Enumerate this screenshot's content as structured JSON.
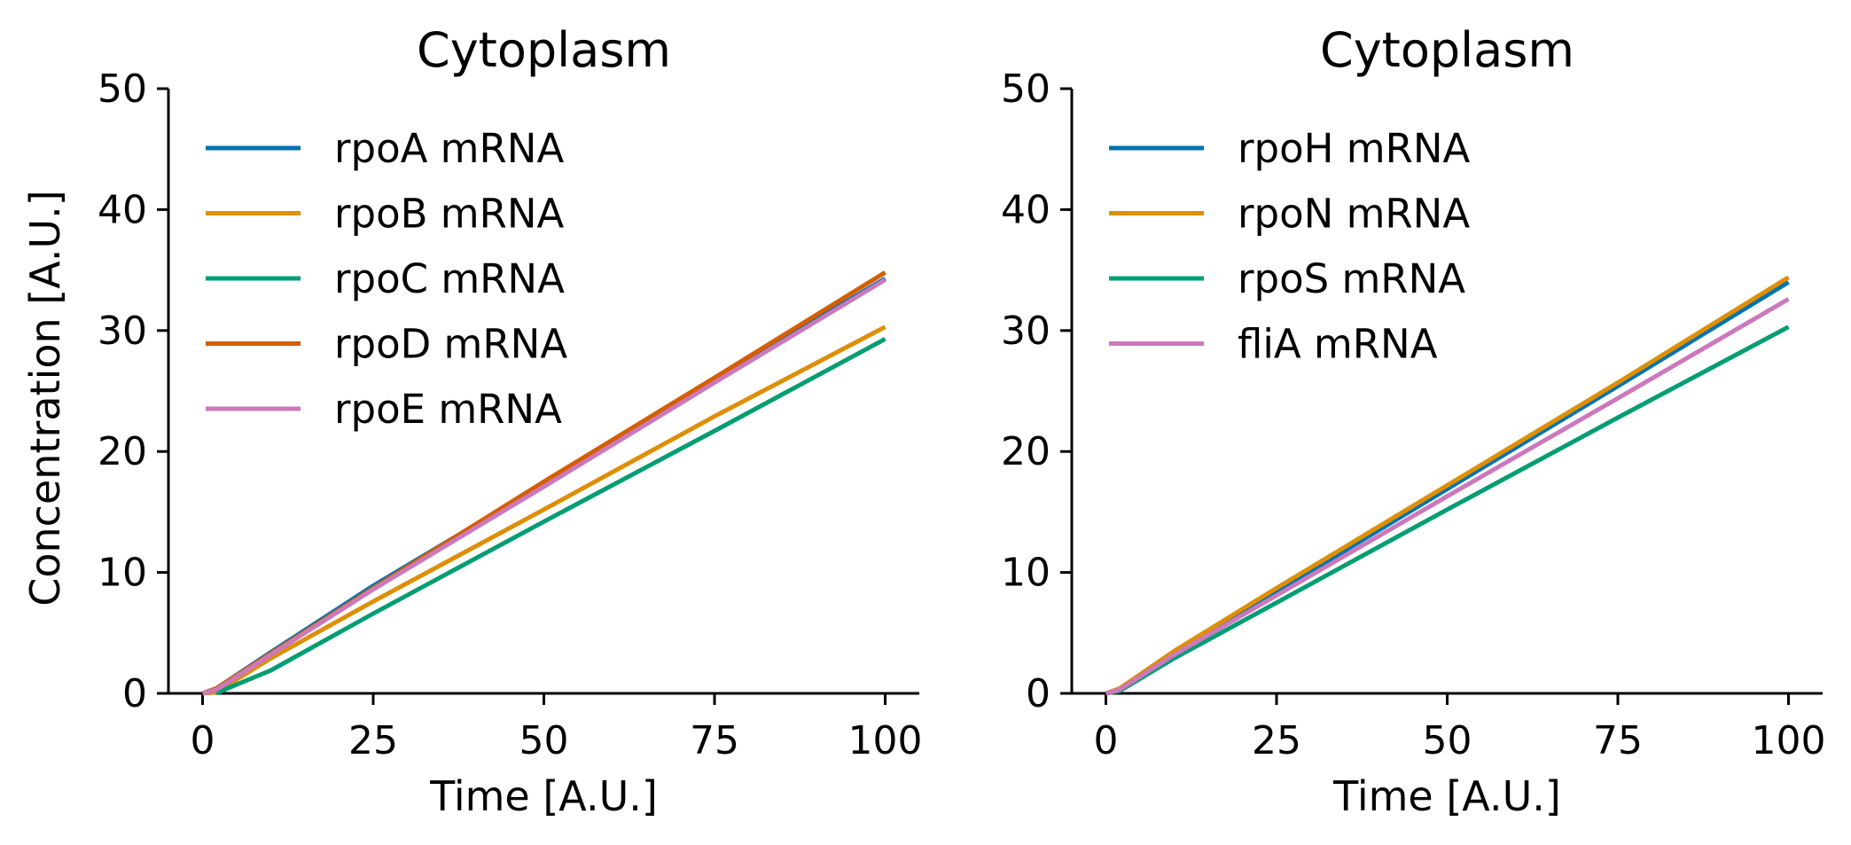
{
  "chart_data": [
    {
      "type": "line",
      "title": "Cytoplasm",
      "xlabel": "Time [A.U.]",
      "ylabel": "Concentration [A.U.]",
      "xlim": [
        -5,
        105
      ],
      "ylim": [
        0,
        50
      ],
      "xticks": [
        0,
        25,
        50,
        75,
        100
      ],
      "yticks": [
        0,
        10,
        20,
        30,
        40,
        50
      ],
      "grid": false,
      "legend_position": "top-left",
      "series": [
        {
          "name": "rpoA mRNA",
          "color": "#0173b2",
          "x": [
            0,
            2,
            10,
            25,
            50,
            75,
            100
          ],
          "y": [
            0,
            0.4,
            3.4,
            8.9,
            17.3,
            25.9,
            34.3
          ]
        },
        {
          "name": "rpoB mRNA",
          "color": "#de8f05",
          "x": [
            0,
            2,
            10,
            25,
            50,
            75,
            100
          ],
          "y": [
            0,
            0.1,
            2.9,
            7.6,
            15.2,
            22.9,
            30.3
          ]
        },
        {
          "name": "rpoC mRNA",
          "color": "#029e73",
          "x": [
            2,
            4,
            10,
            25,
            50,
            75,
            100
          ],
          "y": [
            0,
            0.5,
            1.9,
            6.6,
            14.2,
            21.7,
            29.3
          ]
        },
        {
          "name": "rpoD mRNA",
          "color": "#d55e00",
          "x": [
            0,
            2,
            10,
            25,
            50,
            75,
            100
          ],
          "y": [
            0,
            0.4,
            3.3,
            8.7,
            17.5,
            26.1,
            34.8
          ]
        },
        {
          "name": "rpoE mRNA",
          "color": "#cc78bc",
          "x": [
            0,
            2,
            10,
            25,
            50,
            75,
            100
          ],
          "y": [
            0,
            0.3,
            3.2,
            8.6,
            17.1,
            25.7,
            34.2
          ]
        }
      ]
    },
    {
      "type": "line",
      "title": "Cytoplasm",
      "xlabel": "Time [A.U.]",
      "ylabel": "",
      "xlim": [
        -5,
        105
      ],
      "ylim": [
        0,
        50
      ],
      "xticks": [
        0,
        25,
        50,
        75,
        100
      ],
      "yticks": [
        0,
        10,
        20,
        30,
        40,
        50
      ],
      "grid": false,
      "legend_position": "top-left",
      "series": [
        {
          "name": "rpoH mRNA",
          "color": "#0173b2",
          "x": [
            0,
            2,
            10,
            25,
            50,
            75,
            100
          ],
          "y": [
            0,
            0.3,
            3.3,
            8.4,
            16.9,
            25.4,
            34.0
          ]
        },
        {
          "name": "rpoN mRNA",
          "color": "#de8f05",
          "x": [
            0,
            2,
            10,
            25,
            50,
            75,
            100
          ],
          "y": [
            0,
            0.4,
            3.5,
            8.7,
            17.2,
            25.7,
            34.4
          ]
        },
        {
          "name": "rpoS mRNA",
          "color": "#029e73",
          "x": [
            0,
            2,
            10,
            25,
            50,
            75,
            100
          ],
          "y": [
            0,
            0.2,
            2.9,
            7.5,
            15.2,
            22.8,
            30.3
          ]
        },
        {
          "name": "fliA mRNA",
          "color": "#cc78bc",
          "x": [
            0,
            2,
            10,
            25,
            50,
            75,
            100
          ],
          "y": [
            0,
            0.3,
            3.2,
            8.1,
            16.3,
            24.4,
            32.6
          ]
        }
      ]
    }
  ]
}
